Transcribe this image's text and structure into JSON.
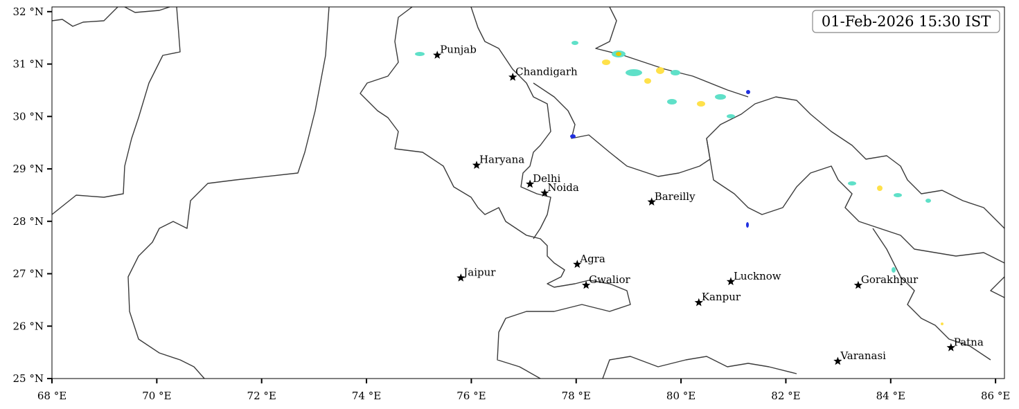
{
  "map": {
    "title": "01-Feb-2026 15:30 IST",
    "xlim": [
      68,
      86.17
    ],
    "ylim": [
      25,
      32.09
    ],
    "xticks": [
      {
        "value": 68,
        "label": "68 °E"
      },
      {
        "value": 70,
        "label": "70 °E"
      },
      {
        "value": 72,
        "label": "72 °E"
      },
      {
        "value": 74,
        "label": "74 °E"
      },
      {
        "value": 76,
        "label": "76 °E"
      },
      {
        "value": 78,
        "label": "78 °E"
      },
      {
        "value": 80,
        "label": "80 °E"
      },
      {
        "value": 82,
        "label": "82 °E"
      },
      {
        "value": 84,
        "label": "84 °E"
      },
      {
        "value": 86,
        "label": "86 °E"
      }
    ],
    "yticks": [
      {
        "value": 25,
        "label": "25 °N"
      },
      {
        "value": 26,
        "label": "26 °N"
      },
      {
        "value": 27,
        "label": "27 °N"
      },
      {
        "value": 28,
        "label": "28 °N"
      },
      {
        "value": 29,
        "label": "29 °N"
      },
      {
        "value": 30,
        "label": "30 °N"
      },
      {
        "value": 31,
        "label": "31 °N"
      },
      {
        "value": 32,
        "label": "32 °N"
      }
    ],
    "cities": [
      {
        "name": "Punjab",
        "lon": 75.35,
        "lat": 31.17
      },
      {
        "name": "Chandigarh",
        "lon": 76.79,
        "lat": 30.75
      },
      {
        "name": "Haryana",
        "lon": 76.1,
        "lat": 29.07
      },
      {
        "name": "Delhi",
        "lon": 77.12,
        "lat": 28.71
      },
      {
        "name": "Noida",
        "lon": 77.4,
        "lat": 28.54
      },
      {
        "name": "Bareilly",
        "lon": 79.44,
        "lat": 28.37
      },
      {
        "name": "Agra",
        "lon": 78.02,
        "lat": 27.18
      },
      {
        "name": "Jaipur",
        "lon": 75.8,
        "lat": 26.92
      },
      {
        "name": "Gwalior",
        "lon": 78.19,
        "lat": 26.78
      },
      {
        "name": "Lucknow",
        "lon": 80.95,
        "lat": 26.85
      },
      {
        "name": "Kanpur",
        "lon": 80.34,
        "lat": 26.45
      },
      {
        "name": "Gorakhpur",
        "lon": 83.38,
        "lat": 26.78
      },
      {
        "name": "Patna",
        "lon": 85.15,
        "lat": 25.59
      },
      {
        "name": "Varanasi",
        "lon": 82.99,
        "lat": 25.33
      }
    ]
  }
}
